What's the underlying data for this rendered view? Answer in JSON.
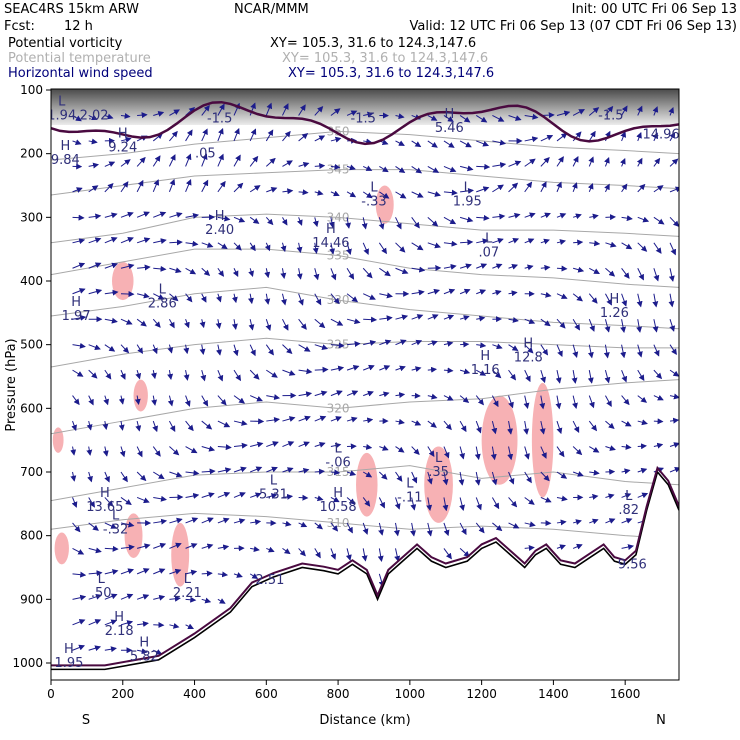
{
  "header": {
    "model": "SEAC4RS 15km ARW",
    "org": "NCAR/MMM",
    "init": "Init: 00 UTC Fri 06 Sep 13",
    "fcst_label": "Fcst:",
    "fcst_value": "12 h",
    "valid": "Valid: 12 UTC Fri 06 Sep 13 (07 CDT Fri 06 Sep 13)"
  },
  "fields": [
    {
      "name": "Potential vorticity",
      "xy": "XY= 105.3, 31.6 to 124.3,147.6",
      "color": "#000000"
    },
    {
      "name": "Potential temperature",
      "xy": "XY= 105.3, 31.6 to 124.3,147.6",
      "color": "#a8a8a8"
    },
    {
      "name": "Horizontal wind speed",
      "xy": "XY= 105.3, 31.6 to 124.3,147.6",
      "color": "#00007a"
    }
  ],
  "colors": {
    "pv_fill": "#f7b1b4",
    "theta": "#a8a8a8",
    "wind": "#1c1c8c",
    "label": "#30307a",
    "terrain": "#000000",
    "pv_line": "#4a0a40"
  },
  "chart_data": {
    "type": "cross-section",
    "xlabel": "Distance (km)",
    "ylabel": "Pressure (hPa)",
    "xlim": [
      0,
      1750
    ],
    "ylim": [
      1050,
      100
    ],
    "x_ticks": [
      "0",
      "200",
      "400",
      "600",
      "800",
      "1000",
      "1200",
      "1400",
      "1600"
    ],
    "y_ticks": [
      "100",
      "200",
      "300",
      "400",
      "500",
      "600",
      "700",
      "800",
      "900",
      "1000"
    ],
    "end_labels": {
      "left": "S",
      "right": "N"
    },
    "terrain": [
      {
        "x": 0,
        "p": 1010
      },
      {
        "x": 150,
        "p": 1010
      },
      {
        "x": 300,
        "p": 995
      },
      {
        "x": 400,
        "p": 960
      },
      {
        "x": 500,
        "p": 920
      },
      {
        "x": 560,
        "p": 880
      },
      {
        "x": 620,
        "p": 865
      },
      {
        "x": 700,
        "p": 850
      },
      {
        "x": 760,
        "p": 855
      },
      {
        "x": 800,
        "p": 860
      },
      {
        "x": 840,
        "p": 845
      },
      {
        "x": 880,
        "p": 860
      },
      {
        "x": 910,
        "p": 900
      },
      {
        "x": 940,
        "p": 860
      },
      {
        "x": 980,
        "p": 840
      },
      {
        "x": 1020,
        "p": 820
      },
      {
        "x": 1060,
        "p": 840
      },
      {
        "x": 1100,
        "p": 850
      },
      {
        "x": 1160,
        "p": 840
      },
      {
        "x": 1200,
        "p": 820
      },
      {
        "x": 1240,
        "p": 810
      },
      {
        "x": 1280,
        "p": 830
      },
      {
        "x": 1320,
        "p": 850
      },
      {
        "x": 1350,
        "p": 830
      },
      {
        "x": 1380,
        "p": 820
      },
      {
        "x": 1420,
        "p": 845
      },
      {
        "x": 1460,
        "p": 850
      },
      {
        "x": 1500,
        "p": 835
      },
      {
        "x": 1540,
        "p": 820
      },
      {
        "x": 1570,
        "p": 840
      },
      {
        "x": 1600,
        "p": 845
      },
      {
        "x": 1630,
        "p": 830
      },
      {
        "x": 1660,
        "p": 760
      },
      {
        "x": 1690,
        "p": 700
      },
      {
        "x": 1720,
        "p": 720
      },
      {
        "x": 1750,
        "p": 760
      }
    ],
    "isentropes": [
      {
        "theta": "310",
        "points": [
          [
            0,
            790
          ],
          [
            200,
            775
          ],
          [
            400,
            765
          ],
          [
            600,
            770
          ],
          [
            800,
            780
          ],
          [
            1000,
            790
          ],
          [
            1200,
            785
          ],
          [
            1400,
            790
          ],
          [
            1600,
            800
          ],
          [
            1750,
            805
          ]
        ]
      },
      {
        "theta": "315",
        "points": [
          [
            0,
            745
          ],
          [
            200,
            725
          ],
          [
            400,
            705
          ],
          [
            600,
            700
          ],
          [
            800,
            700
          ],
          [
            1000,
            690
          ],
          [
            1200,
            710
          ],
          [
            1400,
            700
          ],
          [
            1600,
            715
          ],
          [
            1750,
            720
          ]
        ]
      },
      {
        "theta": "320",
        "points": [
          [
            0,
            640
          ],
          [
            200,
            620
          ],
          [
            400,
            600
          ],
          [
            600,
            590
          ],
          [
            800,
            600
          ],
          [
            1000,
            590
          ],
          [
            1200,
            585
          ],
          [
            1400,
            570
          ],
          [
            1600,
            560
          ],
          [
            1750,
            555
          ]
        ]
      },
      {
        "theta": "325",
        "points": [
          [
            0,
            535
          ],
          [
            200,
            515
          ],
          [
            400,
            500
          ],
          [
            600,
            490
          ],
          [
            800,
            500
          ],
          [
            1000,
            495
          ],
          [
            1200,
            495
          ],
          [
            1400,
            500
          ],
          [
            1600,
            505
          ],
          [
            1750,
            505
          ]
        ]
      },
      {
        "theta": "330",
        "points": [
          [
            0,
            455
          ],
          [
            200,
            440
          ],
          [
            400,
            420
          ],
          [
            600,
            410
          ],
          [
            800,
            430
          ],
          [
            1000,
            445
          ],
          [
            1200,
            455
          ],
          [
            1400,
            465
          ],
          [
            1600,
            470
          ],
          [
            1750,
            475
          ]
        ]
      },
      {
        "theta": "335",
        "points": [
          [
            0,
            390
          ],
          [
            200,
            370
          ],
          [
            400,
            350
          ],
          [
            600,
            350
          ],
          [
            800,
            360
          ],
          [
            1000,
            380
          ],
          [
            1200,
            390
          ],
          [
            1400,
            395
          ],
          [
            1600,
            405
          ],
          [
            1750,
            410
          ]
        ]
      },
      {
        "theta": "340",
        "points": [
          [
            0,
            340
          ],
          [
            200,
            325
          ],
          [
            400,
            300
          ],
          [
            600,
            295
          ],
          [
            800,
            300
          ],
          [
            1000,
            310
          ],
          [
            1200,
            320
          ],
          [
            1400,
            320
          ],
          [
            1600,
            325
          ],
          [
            1750,
            330
          ]
        ]
      },
      {
        "theta": "345",
        "points": [
          [
            0,
            265
          ],
          [
            200,
            250
          ],
          [
            400,
            235
          ],
          [
            600,
            230
          ],
          [
            800,
            225
          ],
          [
            1000,
            225
          ],
          [
            1200,
            235
          ],
          [
            1400,
            245
          ],
          [
            1600,
            250
          ],
          [
            1750,
            255
          ]
        ]
      },
      {
        "theta": "350",
        "points": [
          [
            0,
            210
          ],
          [
            200,
            200
          ],
          [
            400,
            185
          ],
          [
            600,
            175
          ],
          [
            800,
            165
          ],
          [
            1000,
            170
          ],
          [
            1200,
            180
          ],
          [
            1400,
            190
          ],
          [
            1600,
            195
          ],
          [
            1750,
            200
          ]
        ]
      }
    ],
    "pv_regions": [
      {
        "x": 200,
        "p": 400,
        "rx": 30,
        "rp": 30
      },
      {
        "x": 230,
        "p": 800,
        "rx": 25,
        "rp": 35
      },
      {
        "x": 360,
        "p": 830,
        "rx": 25,
        "rp": 50
      },
      {
        "x": 1250,
        "p": 650,
        "rx": 50,
        "rp": 70
      },
      {
        "x": 1370,
        "p": 650,
        "rx": 30,
        "rp": 90
      },
      {
        "x": 1080,
        "p": 720,
        "rx": 40,
        "rp": 60
      },
      {
        "x": 880,
        "p": 720,
        "rx": 30,
        "rp": 50
      },
      {
        "x": 930,
        "p": 280,
        "rx": 25,
        "rp": 30
      },
      {
        "x": 250,
        "p": 580,
        "rx": 20,
        "rp": 25
      },
      {
        "x": 30,
        "p": 820,
        "rx": 20,
        "rp": 25
      },
      {
        "x": 20,
        "p": 650,
        "rx": 15,
        "rp": 20
      }
    ],
    "annotations": [
      {
        "kind": "L",
        "value": "1.94",
        "x": 30,
        "p": 140
      },
      {
        "kind": "",
        "value": "2.02",
        "x": 120,
        "p": 140
      },
      {
        "kind": "H",
        "value": "9.84",
        "x": 40,
        "p": 210
      },
      {
        "kind": "H",
        "value": "9.24",
        "x": 200,
        "p": 190
      },
      {
        "kind": "",
        "value": "-1.5",
        "x": 470,
        "p": 145
      },
      {
        "kind": "",
        "value": ".05",
        "x": 430,
        "p": 200
      },
      {
        "kind": "",
        "value": "-1.5",
        "x": 870,
        "p": 145
      },
      {
        "kind": "H",
        "value": "5.46",
        "x": 1110,
        "p": 160
      },
      {
        "kind": "",
        "value": "-1.5",
        "x": 1560,
        "p": 140
      },
      {
        "kind": "",
        "value": "14.96",
        "x": 1700,
        "p": 170
      },
      {
        "kind": "H",
        "value": "2.40",
        "x": 470,
        "p": 320
      },
      {
        "kind": "L",
        "value": "-.33",
        "x": 900,
        "p": 275
      },
      {
        "kind": "L",
        "value": "1.95",
        "x": 1160,
        "p": 275
      },
      {
        "kind": "H",
        "value": "14.46",
        "x": 780,
        "p": 340
      },
      {
        "kind": "L",
        "value": ".07",
        "x": 1220,
        "p": 355
      },
      {
        "kind": "H",
        "value": "1.97",
        "x": 70,
        "p": 455
      },
      {
        "kind": "L",
        "value": "2.86",
        "x": 310,
        "p": 435
      },
      {
        "kind": "H",
        "value": "1.26",
        "x": 1570,
        "p": 450
      },
      {
        "kind": "H",
        "value": "1.16",
        "x": 1210,
        "p": 540
      },
      {
        "kind": "H",
        "value": "12.8",
        "x": 1330,
        "p": 520
      },
      {
        "kind": "L",
        "value": "-.06",
        "x": 800,
        "p": 685
      },
      {
        "kind": "L",
        "value": "5.31",
        "x": 620,
        "p": 735
      },
      {
        "kind": "H",
        "value": "10.58",
        "x": 800,
        "p": 755
      },
      {
        "kind": "L",
        "value": "-.11",
        "x": 1000,
        "p": 740
      },
      {
        "kind": "L",
        "value": ".35",
        "x": 1080,
        "p": 700
      },
      {
        "kind": "H",
        "value": "13.65",
        "x": 150,
        "p": 755
      },
      {
        "kind": "L",
        "value": "-.32",
        "x": 180,
        "p": 790
      },
      {
        "kind": "L",
        "value": ".82",
        "x": 1610,
        "p": 760
      },
      {
        "kind": "L",
        "value": ".50",
        "x": 140,
        "p": 890
      },
      {
        "kind": "L",
        "value": "2.21",
        "x": 380,
        "p": 890
      },
      {
        "kind": "H",
        "value": "2.18",
        "x": 190,
        "p": 950
      },
      {
        "kind": "H",
        "value": "5.82",
        "x": 260,
        "p": 990
      },
      {
        "kind": "H",
        "value": "1.95",
        "x": 50,
        "p": 1000
      },
      {
        "kind": "",
        "value": "2.51",
        "x": 610,
        "p": 870
      },
      {
        "kind": "",
        "value": "9.56",
        "x": 1620,
        "p": 845
      }
    ]
  }
}
